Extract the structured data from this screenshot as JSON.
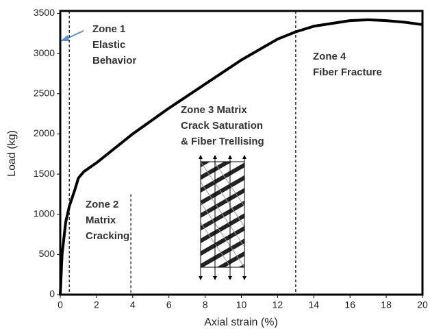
{
  "chart_data": {
    "type": "line",
    "xlabel": "Axial strain (%)",
    "ylabel": "Load (kg)",
    "x": [
      0,
      0.1,
      0.3,
      0.5,
      0.8,
      1,
      1.3,
      2,
      4,
      6,
      8,
      10,
      12,
      13,
      14,
      16,
      17,
      18,
      19,
      20
    ],
    "series": [
      {
        "color": "#000000",
        "values": [
          0,
          500,
          900,
          1100,
          1300,
          1450,
          1530,
          1640,
          2000,
          2320,
          2620,
          2920,
          3180,
          3270,
          3340,
          3410,
          3420,
          3410,
          3390,
          3360
        ]
      }
    ],
    "xlim": [
      0,
      20
    ],
    "xticks": [
      0,
      2,
      4,
      6,
      8,
      10,
      12,
      14,
      16,
      18,
      20
    ],
    "ylim": [
      0,
      3530
    ],
    "yticks": [
      0,
      500,
      1000,
      1500,
      2000,
      2500,
      3000,
      3500
    ],
    "vlines": [
      {
        "x": 0.5
      },
      {
        "x": 3.9,
        "ymax": 1250
      },
      {
        "x": 13
      }
    ],
    "annotations": [
      [
        "Zone 1",
        "Elastic",
        "Behavior"
      ],
      [
        "Zone 2",
        "Matrix",
        "Cracking"
      ],
      [
        "Zone 3 Matrix",
        "Crack Saturation",
        "& Fiber Trellising"
      ],
      [
        "Zone 4",
        "Fiber Fracture"
      ]
    ]
  }
}
